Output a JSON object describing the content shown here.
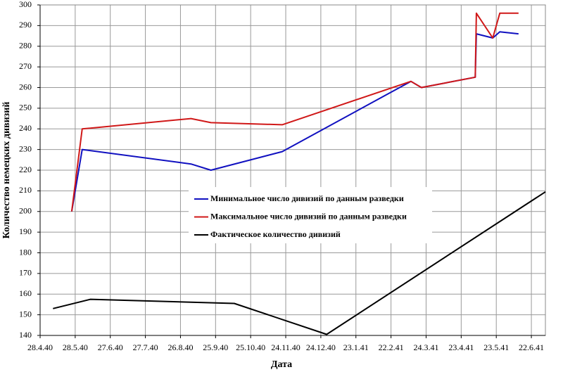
{
  "chart_data": {
    "type": "line",
    "x_label": "Дата",
    "y_label": "Количество немецких дивизий",
    "xlim": [
      "1940-04-28",
      "1941-07-04"
    ],
    "ylim": [
      140,
      300
    ],
    "xticks": [
      {
        "value": "1940-04-28",
        "label": "28.4.40"
      },
      {
        "value": "1940-05-28",
        "label": "28.5.40"
      },
      {
        "value": "1940-06-27",
        "label": "27.6.40"
      },
      {
        "value": "1940-07-27",
        "label": "27.7.40"
      },
      {
        "value": "1940-08-26",
        "label": "26.8.40"
      },
      {
        "value": "1940-09-25",
        "label": "25.9.40"
      },
      {
        "value": "1940-10-25",
        "label": "25.10.40"
      },
      {
        "value": "1940-11-24",
        "label": "24.11.40"
      },
      {
        "value": "1940-12-24",
        "label": "24.12.40"
      },
      {
        "value": "1941-01-23",
        "label": "23.1.41"
      },
      {
        "value": "1941-02-22",
        "label": "22.2.41"
      },
      {
        "value": "1941-03-24",
        "label": "24.3.41"
      },
      {
        "value": "1941-04-23",
        "label": "23.4.41"
      },
      {
        "value": "1941-05-23",
        "label": "23.5.41"
      },
      {
        "value": "1941-06-22",
        "label": "22.6.41"
      }
    ],
    "yticks": [
      140,
      150,
      160,
      170,
      180,
      190,
      200,
      210,
      220,
      230,
      240,
      250,
      260,
      270,
      280,
      290,
      300
    ],
    "grid": true,
    "legend": "center",
    "series": [
      {
        "name": "Минимальное число дивизий по данным разведки",
        "color": "#1010c0",
        "x": [
          "1940-05-25",
          "1940-06-03",
          "1940-09-04",
          "1940-09-21",
          "1940-11-21",
          "1941-03-11",
          "1941-03-20",
          "1941-05-05",
          "1941-05-06",
          "1941-05-20",
          "1941-05-26",
          "1941-06-11"
        ],
        "values": [
          200,
          230,
          223,
          220,
          229,
          263,
          260,
          265,
          286,
          284,
          287,
          286
        ]
      },
      {
        "name": "Максимальное число дивизий по данным разведки",
        "color": "#d01818",
        "x": [
          "1940-05-25",
          "1940-06-03",
          "1940-09-04",
          "1940-09-21",
          "1940-11-21",
          "1941-03-11",
          "1941-03-20",
          "1941-05-05",
          "1941-05-06",
          "1941-05-20",
          "1941-05-26",
          "1941-06-11"
        ],
        "values": [
          200,
          240,
          245,
          243,
          242,
          263,
          260,
          265,
          296,
          284,
          296,
          296
        ]
      },
      {
        "name": "Фактическое количество дивизий",
        "color": "#000000",
        "x": [
          "1940-05-09",
          "1940-06-10",
          "1940-10-11",
          "1940-12-29",
          "1941-07-04"
        ],
        "values": [
          153,
          157.5,
          155.5,
          140.5,
          209.5
        ]
      }
    ]
  }
}
